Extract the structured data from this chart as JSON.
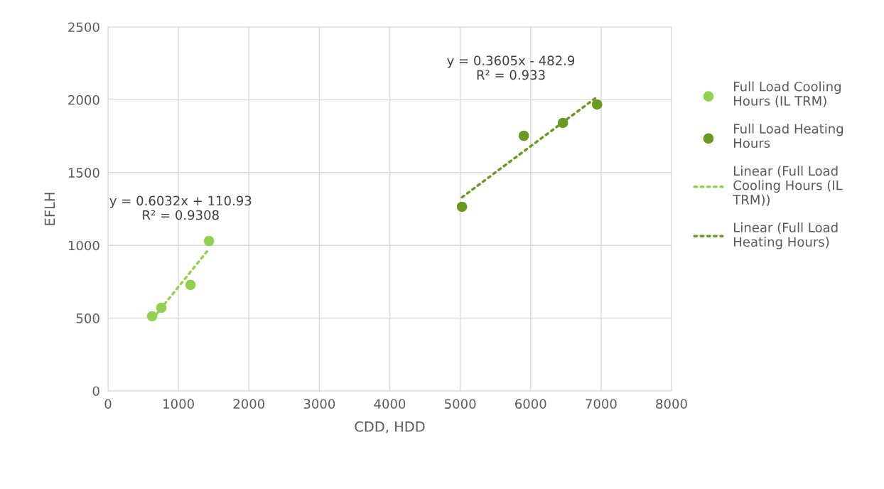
{
  "chart_data": {
    "type": "scatter",
    "xlabel": "CDD, HDD",
    "ylabel": "EFLH",
    "xlim": [
      0,
      8000
    ],
    "xticks": [
      0,
      1000,
      2000,
      3000,
      4000,
      5000,
      6000,
      7000,
      8000
    ],
    "ylim": [
      0,
      2500
    ],
    "yticks": [
      0,
      500,
      1000,
      1500,
      2000,
      2500
    ],
    "grid": true,
    "legend": "right",
    "series": [
      {
        "name": "Full Load Cooling Hours (IL TRM)",
        "color": "#92d050",
        "marker": "circle",
        "x": [
          626,
          757,
          1171,
          1433
        ],
        "values": [
          513,
          571,
          728,
          1030
        ]
      },
      {
        "name": "Full Load Heating Hours",
        "color": "#6a9a22",
        "marker": "circle",
        "x": [
          5025,
          5903,
          6458,
          6943
        ],
        "values": [
          1265,
          1753,
          1841,
          1968
        ]
      },
      {
        "name": "Linear (Full Load Cooling Hours (IL TRM))",
        "type": "line",
        "line_style": "dotted",
        "color": "#92d050",
        "x": [
          626,
          1433
        ],
        "values": [
          490,
          975
        ]
      },
      {
        "name": "Linear (Full Load Heating Hours)",
        "type": "line",
        "line_style": "dotted",
        "color": "#6a9a22",
        "x": [
          5025,
          6943
        ],
        "values": [
          1330,
          2020
        ]
      }
    ],
    "annotations": [
      "y = 0.6032x + 110.93\nR² = 0.9308",
      "y = 0.3605x - 482.9\nR² = 0.933"
    ]
  }
}
